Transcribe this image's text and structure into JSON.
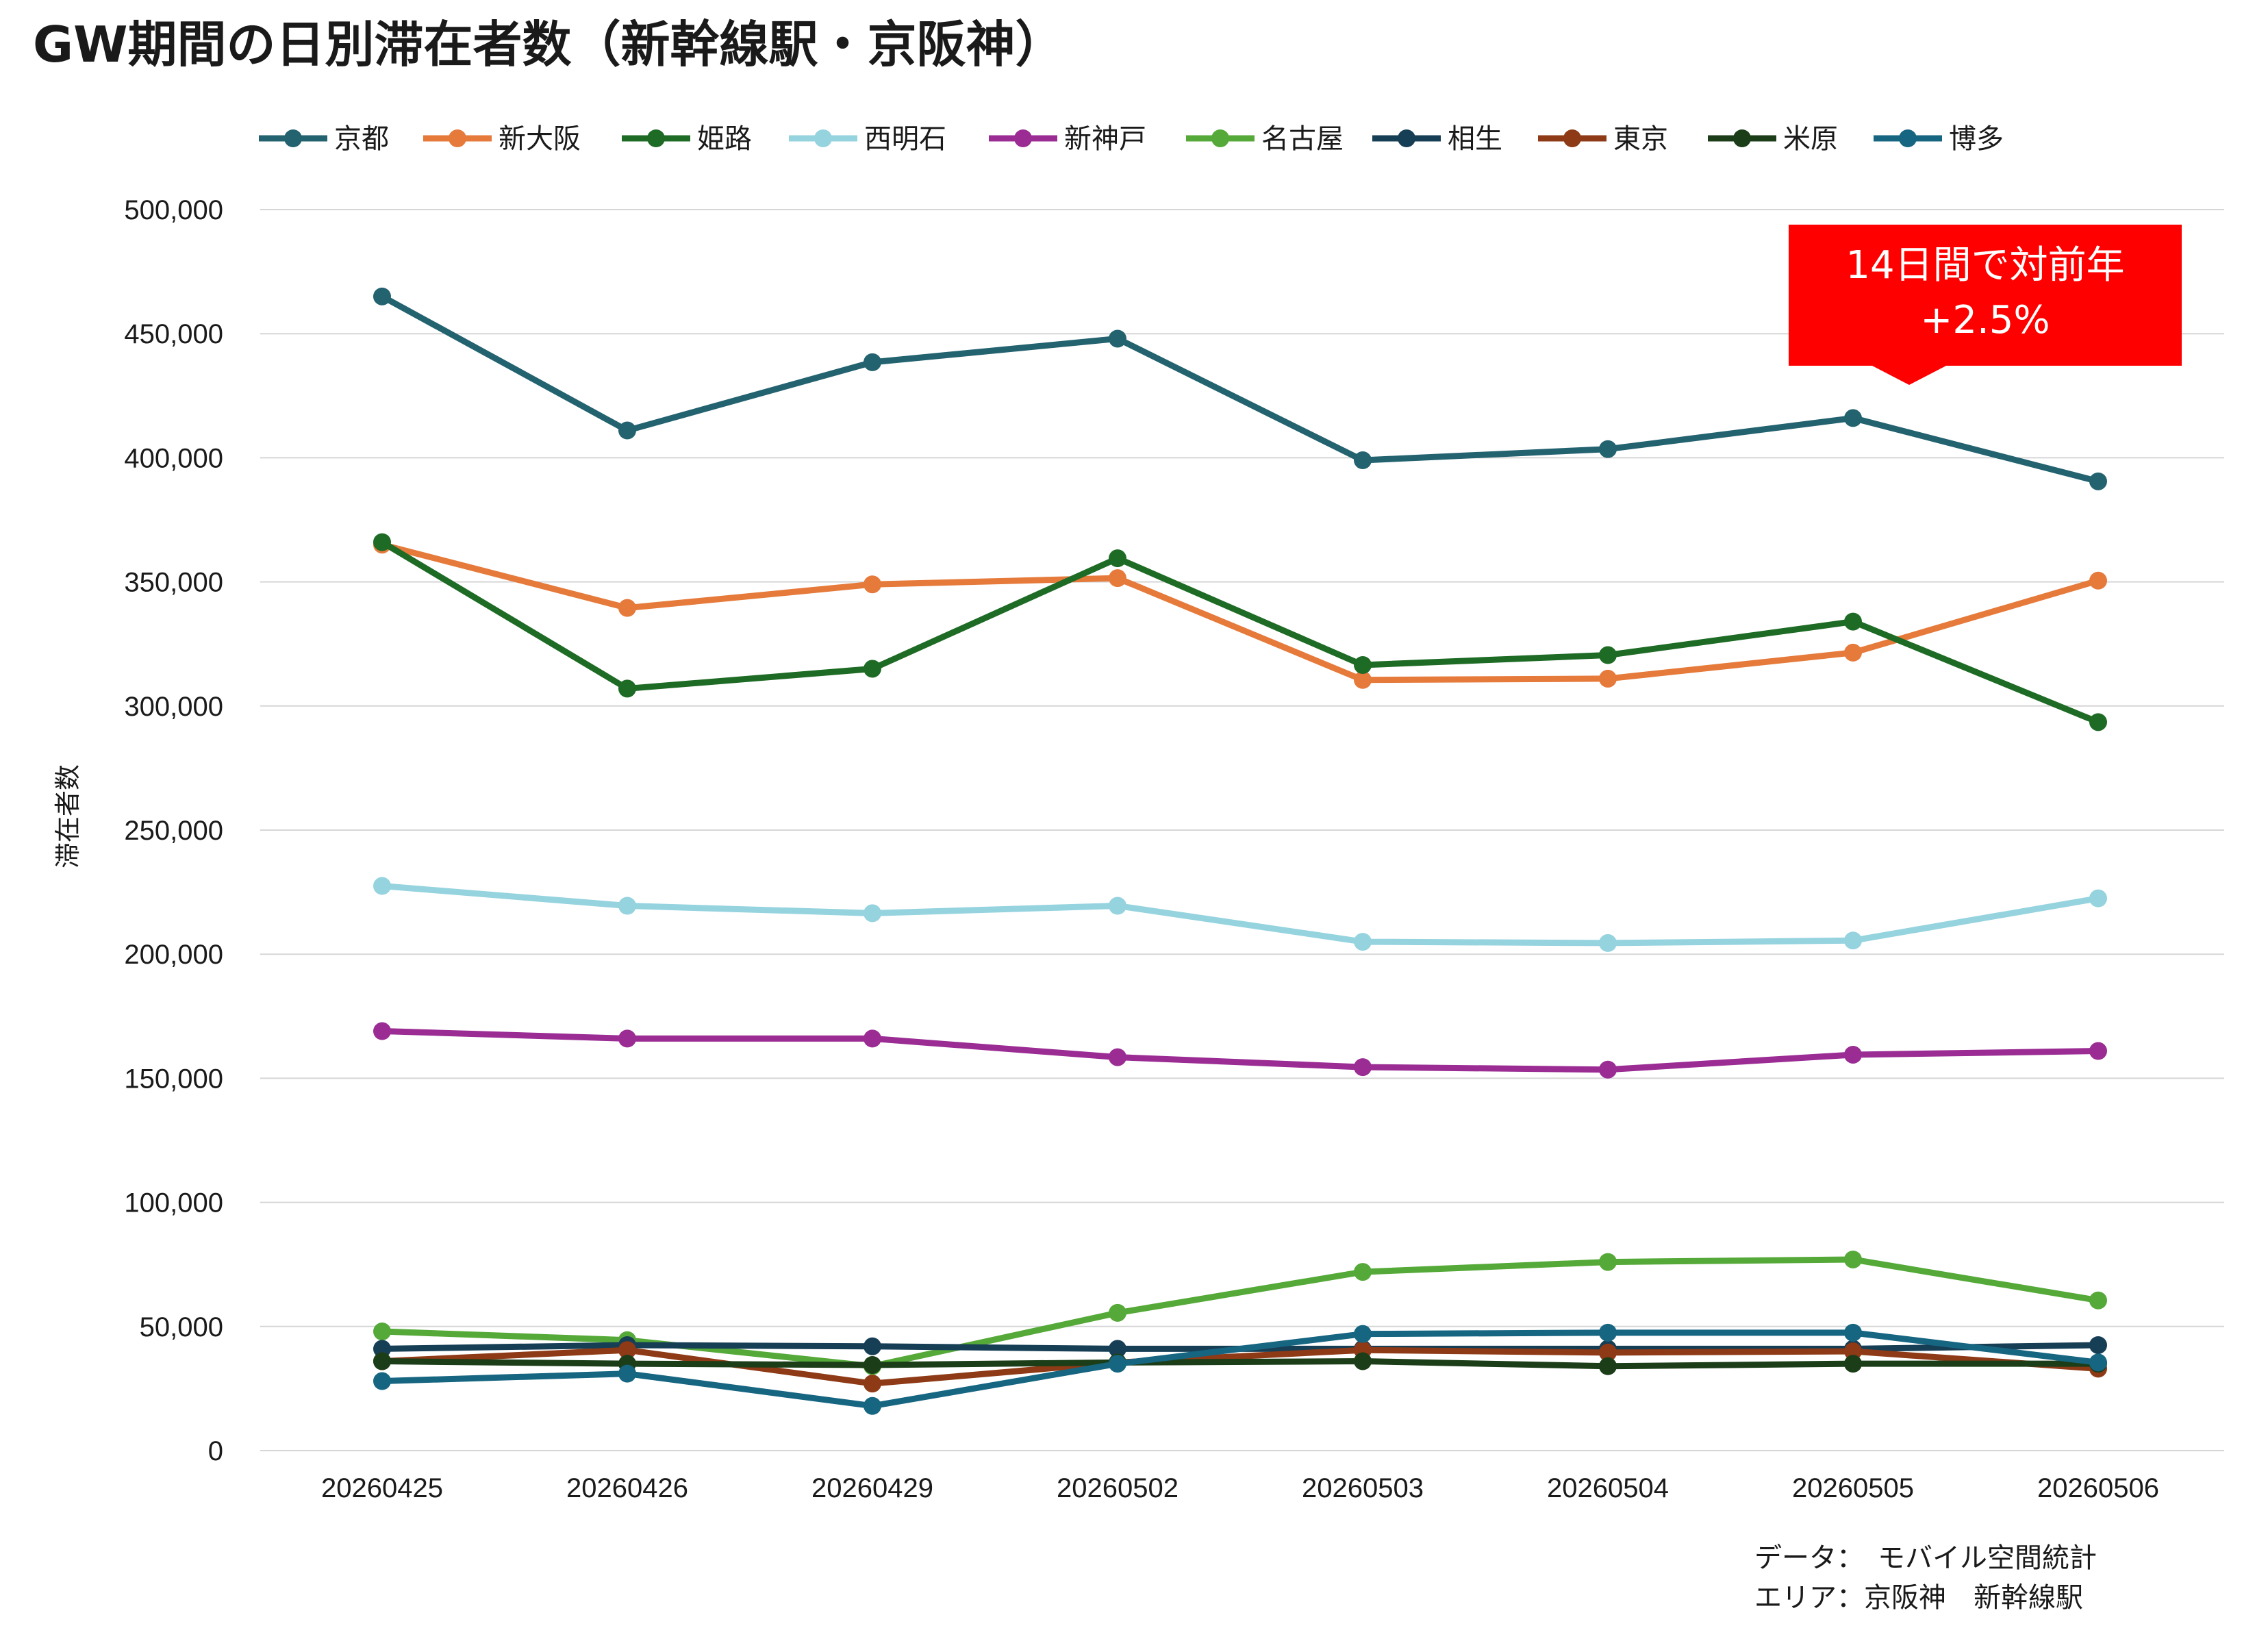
{
  "title": "GW期間の日別滞在者数（新幹線駅・京阪神）",
  "chart_data": {
    "type": "line",
    "title": "GW期間の日別滞在者数（新幹線駅・京阪神）",
    "xlabel": "",
    "ylabel": "滞在者数",
    "ylim": [
      0,
      500000
    ],
    "yticks": [
      "0",
      "50,000",
      "100,000",
      "150,000",
      "200,000",
      "250,000",
      "300,000",
      "350,000",
      "400,000",
      "450,000",
      "500,000"
    ],
    "categories": [
      "20260425",
      "20260426",
      "20260429",
      "20260502",
      "20260503",
      "20260504",
      "20260505",
      "20260506"
    ],
    "grid": true,
    "legend_position": "top",
    "series": [
      {
        "name": "京都",
        "color": "#23626F",
        "values": [
          465000,
          411000,
          438500,
          448000,
          399000,
          403500,
          416000,
          390500
        ]
      },
      {
        "name": "新大阪",
        "color": "#E57A3B",
        "values": [
          365000,
          339500,
          349000,
          351500,
          310500,
          311000,
          321500,
          350500
        ]
      },
      {
        "name": "姫路",
        "color": "#1E6B25",
        "values": [
          366000,
          307000,
          315000,
          359500,
          316500,
          320500,
          334000,
          293500
        ]
      },
      {
        "name": "西明石",
        "color": "#95D3DF",
        "values": [
          227500,
          219500,
          216500,
          219500,
          205000,
          204500,
          205500,
          222500
        ]
      },
      {
        "name": "新神戸",
        "color": "#9A2C93",
        "values": [
          169000,
          166000,
          166000,
          158500,
          154500,
          153500,
          159500,
          161000
        ]
      },
      {
        "name": "名古屋",
        "color": "#55A938",
        "values": [
          48000,
          44500,
          34000,
          55500,
          72000,
          76000,
          77000,
          60500
        ]
      },
      {
        "name": "相生",
        "color": "#163E55",
        "values": [
          41000,
          42500,
          42000,
          41000,
          41000,
          41000,
          41000,
          42500
        ]
      },
      {
        "name": "東京",
        "color": "#8E3A16",
        "values": [
          36000,
          40500,
          27000,
          35500,
          40500,
          39500,
          40000,
          33000
        ]
      },
      {
        "name": "米原",
        "color": "#1B3E18",
        "values": [
          36000,
          35000,
          34500,
          35500,
          36000,
          34000,
          35000,
          35000
        ]
      },
      {
        "name": "博多",
        "color": "#166581",
        "values": [
          28000,
          31000,
          18000,
          35000,
          47000,
          47500,
          47500,
          35500
        ]
      }
    ],
    "annotation": {
      "line1": "14日間で対前年",
      "line2": "+2.5%",
      "color": "#FF0000"
    }
  },
  "source": {
    "line1": "データ：　モバイル空間統計",
    "line2": "エリア：京阪神　新幹線駅"
  }
}
